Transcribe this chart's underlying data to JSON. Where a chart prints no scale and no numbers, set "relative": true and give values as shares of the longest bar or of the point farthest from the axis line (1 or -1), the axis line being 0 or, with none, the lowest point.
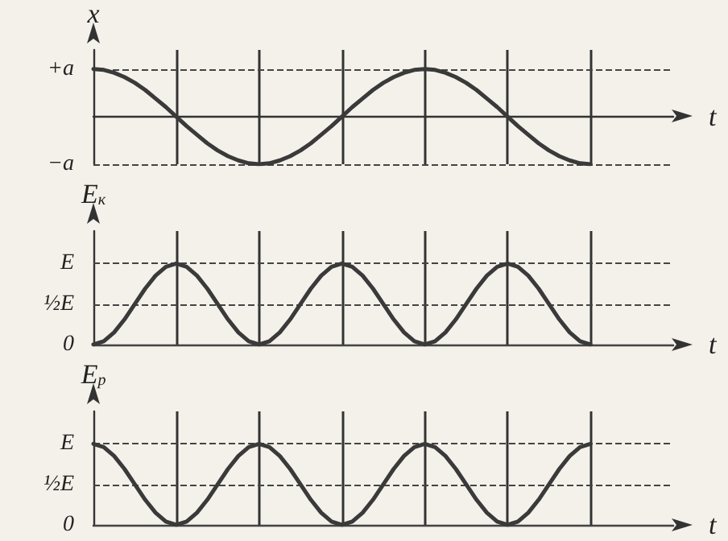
{
  "chart_data": [
    {
      "type": "line",
      "ylabel": "x",
      "xlabel": "t",
      "color": "#3a3a3a",
      "line_style": "solid",
      "marker": "none",
      "grid": "x",
      "categories": [
        null,
        null,
        null,
        null,
        null,
        null,
        null,
        null,
        null,
        null,
        null,
        null,
        null,
        null,
        null,
        null,
        null,
        null,
        null,
        null,
        null,
        null,
        null,
        null,
        null,
        null,
        null,
        null,
        null,
        null,
        null,
        null,
        null,
        null,
        null,
        null,
        null,
        null,
        null,
        null,
        null,
        null,
        null,
        null,
        null,
        null,
        null,
        null,
        null,
        null,
        null,
        null,
        null,
        null,
        null,
        null,
        null
      ],
      "values": [
        1,
        0.98,
        0.92,
        0.83,
        0.71,
        0.56,
        0.38,
        0.2,
        0,
        -0.2,
        -0.38,
        -0.56,
        -0.71,
        -0.83,
        -0.92,
        -0.98,
        -1,
        -0.98,
        -0.92,
        -0.83,
        -0.71,
        -0.56,
        -0.38,
        -0.2,
        0,
        0.2,
        0.38,
        0.56,
        0.71,
        0.83,
        0.92,
        0.98,
        1,
        0.98,
        0.92,
        0.83,
        0.71,
        0.56,
        0.38,
        0.2,
        0,
        -0.2,
        -0.38,
        -0.56,
        -0.71,
        -0.83,
        -0.92,
        -0.98,
        -1,
        null,
        null,
        null,
        null,
        null,
        null,
        null,
        null
      ],
      "relative": true,
      "ref_lines": [
        {
          "axis": "y",
          "value": 1,
          "label": "+a",
          "line_style": "dashed"
        },
        {
          "axis": "y",
          "value": -1,
          "label": "−a",
          "line_style": "dashed"
        }
      ]
    },
    {
      "type": "line",
      "ylabel": "E$_{к}$",
      "xlabel": "t",
      "color": "#3a3a3a",
      "line_style": "solid",
      "marker": "none",
      "grid": "x",
      "categories": [
        null,
        null,
        null,
        null,
        null,
        null,
        null,
        null,
        null,
        null,
        null,
        null,
        null,
        null,
        null,
        null,
        null,
        null,
        null,
        null,
        null,
        null,
        null,
        null,
        null,
        null,
        null,
        null,
        null,
        null,
        null,
        null,
        null,
        null,
        null,
        null,
        null,
        null,
        null,
        null,
        null,
        null,
        null,
        null,
        null,
        null,
        null,
        null,
        null,
        null,
        null,
        null,
        null,
        null,
        null,
        null,
        null
      ],
      "values": [
        0,
        0.04,
        0.15,
        0.31,
        0.5,
        0.69,
        0.85,
        0.96,
        1,
        0.96,
        0.85,
        0.69,
        0.5,
        0.31,
        0.15,
        0.04,
        0,
        0.04,
        0.15,
        0.31,
        0.5,
        0.69,
        0.85,
        0.96,
        1,
        0.96,
        0.85,
        0.69,
        0.5,
        0.31,
        0.15,
        0.04,
        0,
        0.04,
        0.15,
        0.31,
        0.5,
        0.69,
        0.85,
        0.96,
        1,
        0.96,
        0.85,
        0.69,
        0.5,
        0.31,
        0.15,
        0.04,
        0,
        null,
        null,
        null,
        null,
        null,
        null,
        null,
        null
      ],
      "relative": true,
      "ref_lines": [
        {
          "axis": "y",
          "value": 1,
          "label": "E",
          "line_style": "dashed"
        },
        {
          "axis": "y",
          "value": 0.5,
          "label": "½E",
          "line_style": "dashed"
        },
        {
          "axis": "y",
          "value": 0,
          "label": "0",
          "line_style": "solid"
        }
      ]
    },
    {
      "type": "line",
      "ylabel": "E$_{р}$",
      "xlabel": "t",
      "color": "#3a3a3a",
      "line_style": "solid",
      "marker": "none",
      "grid": "x",
      "categories": [
        null,
        null,
        null,
        null,
        null,
        null,
        null,
        null,
        null,
        null,
        null,
        null,
        null,
        null,
        null,
        null,
        null,
        null,
        null,
        null,
        null,
        null,
        null,
        null,
        null,
        null,
        null,
        null,
        null,
        null,
        null,
        null,
        null,
        null,
        null,
        null,
        null,
        null,
        null,
        null,
        null,
        null,
        null,
        null,
        null,
        null,
        null,
        null,
        null,
        null,
        null,
        null,
        null,
        null,
        null,
        null,
        null
      ],
      "values": [
        1,
        0.96,
        0.85,
        0.69,
        0.5,
        0.31,
        0.15,
        0.04,
        0,
        0.04,
        0.15,
        0.31,
        0.5,
        0.69,
        0.85,
        0.96,
        1,
        0.96,
        0.85,
        0.69,
        0.5,
        0.31,
        0.15,
        0.04,
        0,
        0.04,
        0.15,
        0.31,
        0.5,
        0.69,
        0.85,
        0.96,
        1,
        0.96,
        0.85,
        0.69,
        0.5,
        0.31,
        0.15,
        0.04,
        0,
        0.04,
        0.15,
        0.31,
        0.5,
        0.69,
        0.85,
        0.96,
        1,
        null,
        null,
        null,
        null,
        null,
        null,
        null,
        null
      ],
      "relative": true,
      "ref_lines": [
        {
          "axis": "y",
          "value": 1,
          "label": "E",
          "line_style": "dashed"
        },
        {
          "axis": "y",
          "value": 0.5,
          "label": "½E",
          "line_style": "dashed"
        },
        {
          "axis": "y",
          "value": 0,
          "label": "0",
          "line_style": "solid"
        }
      ]
    }
  ]
}
